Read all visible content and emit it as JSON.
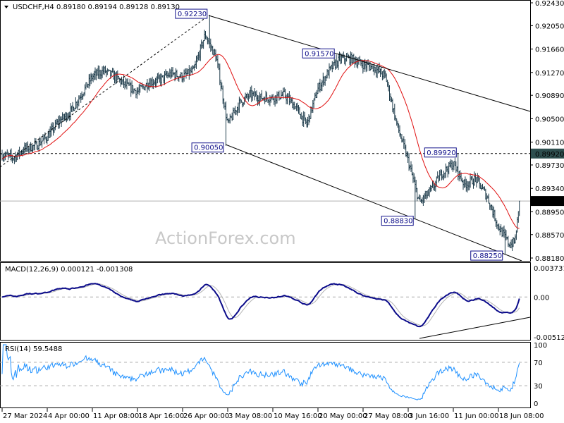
{
  "header": {
    "symbol_timeframe": "USDCHF,H4",
    "ohlc": "0.89180 0.89194 0.89128 0.89130"
  },
  "watermark": "ActionForex.com",
  "colors": {
    "bars": "#1f3d4c",
    "ma": "#e01010",
    "macd": "#0b0b8a",
    "signal": "#b4b4b4",
    "rsi": "#1e90ff",
    "annotation": "#10108a"
  },
  "chart_data": [
    {
      "type": "ohlc",
      "title": "USDCHF,H4",
      "ylim": [
        0.8818,
        0.9243
      ],
      "y_ticks": [
        "0.92430",
        "0.92050",
        "0.91660",
        "0.91270",
        "0.90890",
        "0.90500",
        "0.90110",
        "0.89730",
        "0.89340",
        "0.88950",
        "0.88570",
        "0.88180"
      ],
      "x_ticks": [
        {
          "label": "27 Mar 2024",
          "t": "2024-03-27T00:00"
        },
        {
          "label": "4 Apr 00:00",
          "t": "2024-04-04T00:00"
        },
        {
          "label": "11 Apr 08:00",
          "t": "2024-04-11T08:00"
        },
        {
          "label": "18 Apr 16:00",
          "t": "2024-04-18T16:00"
        },
        {
          "label": "26 Apr 00:00",
          "t": "2024-04-26T00:00"
        },
        {
          "label": "3 May 08:00",
          "t": "2024-05-03T08:00"
        },
        {
          "label": "10 May 16:00",
          "t": "2024-05-10T16:00"
        },
        {
          "label": "20 May 00:00",
          "t": "2024-05-20T00:00"
        },
        {
          "label": "27 May 08:00",
          "t": "2024-05-27T08:00"
        },
        {
          "label": "3 Jun 16:00",
          "t": "2024-06-03T16:00"
        },
        {
          "label": "11 Jun 00:00",
          "t": "2024-06-11T00:00"
        },
        {
          "label": "18 Jun 08:00",
          "t": "2024-06-18T08:00"
        }
      ],
      "close_path": [
        [
          "2024-03-27T00:00",
          0.899
        ],
        [
          "2024-03-29T00:00",
          0.8985
        ],
        [
          "2024-03-31T00:00",
          0.9
        ],
        [
          "2024-04-02T00:00",
          0.9005
        ],
        [
          "2024-04-04T00:00",
          0.902
        ],
        [
          "2024-04-05T20:00",
          0.9045
        ],
        [
          "2024-04-07T16:00",
          0.906
        ],
        [
          "2024-04-09T12:00",
          0.909
        ],
        [
          "2024-04-11T08:00",
          0.912
        ],
        [
          "2024-04-13T04:00",
          0.913
        ],
        [
          "2024-04-15T00:00",
          0.912
        ],
        [
          "2024-04-16T20:00",
          0.9105
        ],
        [
          "2024-04-18T16:00",
          0.9095
        ],
        [
          "2024-04-20T12:00",
          0.911
        ],
        [
          "2024-04-22T08:00",
          0.9115
        ],
        [
          "2024-04-24T04:00",
          0.9125
        ],
        [
          "2024-04-26T00:00",
          0.912
        ],
        [
          "2024-04-27T20:00",
          0.913
        ],
        [
          "2024-04-29T16:00",
          0.919
        ],
        [
          "2024-05-01T12:00",
          0.915
        ],
        [
          "2024-05-03T08:00",
          0.904
        ],
        [
          "2024-05-05T04:00",
          0.9075
        ],
        [
          "2024-05-07T00:00",
          0.909
        ],
        [
          "2024-05-08T20:00",
          0.9085
        ],
        [
          "2024-05-10T16:00",
          0.9085
        ],
        [
          "2024-05-13T00:00",
          0.909
        ],
        [
          "2024-05-15T08:00",
          0.907
        ],
        [
          "2024-05-17T16:00",
          0.904
        ],
        [
          "2024-05-20T00:00",
          0.91
        ],
        [
          "2024-05-21T20:00",
          0.913
        ],
        [
          "2024-05-23T16:00",
          0.915
        ],
        [
          "2024-05-25T12:00",
          0.915
        ],
        [
          "2024-05-27T08:00",
          0.914
        ],
        [
          "2024-05-29T04:00",
          0.9135
        ],
        [
          "2024-05-31T00:00",
          0.912
        ],
        [
          "2024-06-01T20:00",
          0.904
        ],
        [
          "2024-06-03T16:00",
          0.898
        ],
        [
          "2024-06-05T12:00",
          0.891
        ],
        [
          "2024-06-07T08:00",
          0.893
        ],
        [
          "2024-06-09T04:00",
          0.896
        ],
        [
          "2024-06-11T00:00",
          0.8975
        ],
        [
          "2024-06-12T20:00",
          0.894
        ],
        [
          "2024-06-14T16:00",
          0.895
        ],
        [
          "2024-06-16T12:00",
          0.892
        ],
        [
          "2024-06-18T08:00",
          0.887
        ],
        [
          "2024-06-20T04:00",
          0.884
        ],
        [
          "2024-06-21T00:00",
          0.8845
        ],
        [
          "2024-06-21T20:00",
          0.8913
        ]
      ],
      "annotations": [
        {
          "label": "0.92230",
          "t": "2024-04-30T08:00",
          "price": 0.9223,
          "kind": "high"
        },
        {
          "label": "0.90050",
          "t": "2024-05-03T00:00",
          "price": 0.9005,
          "kind": "low"
        },
        {
          "label": "0.91570",
          "t": "2024-05-23T00:00",
          "price": 0.9157,
          "kind": "high"
        },
        {
          "label": "0.88830",
          "t": "2024-06-04T20:00",
          "price": 0.8883,
          "kind": "low"
        },
        {
          "label": "0.89920",
          "t": "2024-06-11T20:00",
          "price": 0.8992,
          "kind": "high"
        },
        {
          "label": "0.88250",
          "t": "2024-06-19T08:00",
          "price": 0.8825,
          "kind": "low"
        }
      ],
      "horizontal_level": {
        "label": "0.89920",
        "price": 0.8992
      },
      "current_price": {
        "label": "0.89130",
        "price": 0.8913
      }
    },
    {
      "type": "line",
      "title": "MACD(12,26,9) 0.000121 -0.001308",
      "ylim": [
        -0.005129,
        0.003731
      ],
      "y_ticks": [
        "0.003731",
        "0.00",
        "-0.005129"
      ],
      "series": [
        {
          "name": "MACD"
        },
        {
          "name": "Signal"
        }
      ]
    },
    {
      "type": "line",
      "title": "RSI(14) 59.5488",
      "ylim": [
        0,
        100
      ],
      "y_ticks": [
        "100",
        "70",
        "30",
        "0"
      ],
      "levels": [
        70,
        30
      ]
    }
  ]
}
